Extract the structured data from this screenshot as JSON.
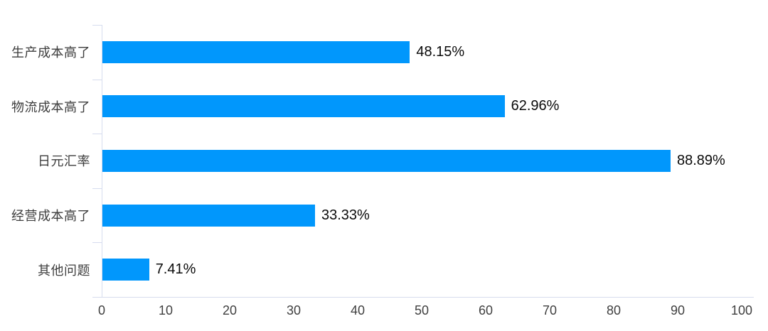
{
  "chart_data": {
    "type": "bar",
    "orientation": "horizontal",
    "title": "",
    "categories": [
      "生产成本高了",
      "物流成本高了",
      "日元汇率",
      "经营成本高了",
      "其他问题"
    ],
    "values": [
      48.15,
      62.96,
      88.89,
      33.33,
      7.41
    ],
    "value_labels": [
      "48.15%",
      "62.96%",
      "88.89%",
      "33.33%",
      "7.41%"
    ],
    "xlim": [
      0,
      100
    ],
    "x_ticks": [
      "0",
      "10",
      "20",
      "30",
      "40",
      "50",
      "60",
      "70",
      "80",
      "90",
      "100"
    ],
    "bar_color": "#0197fc",
    "axis_color": "#d6dcee",
    "category_label_color": "#3d3d3d",
    "value_label_color": "#0a0a0a",
    "grid": false,
    "legend": "none"
  }
}
